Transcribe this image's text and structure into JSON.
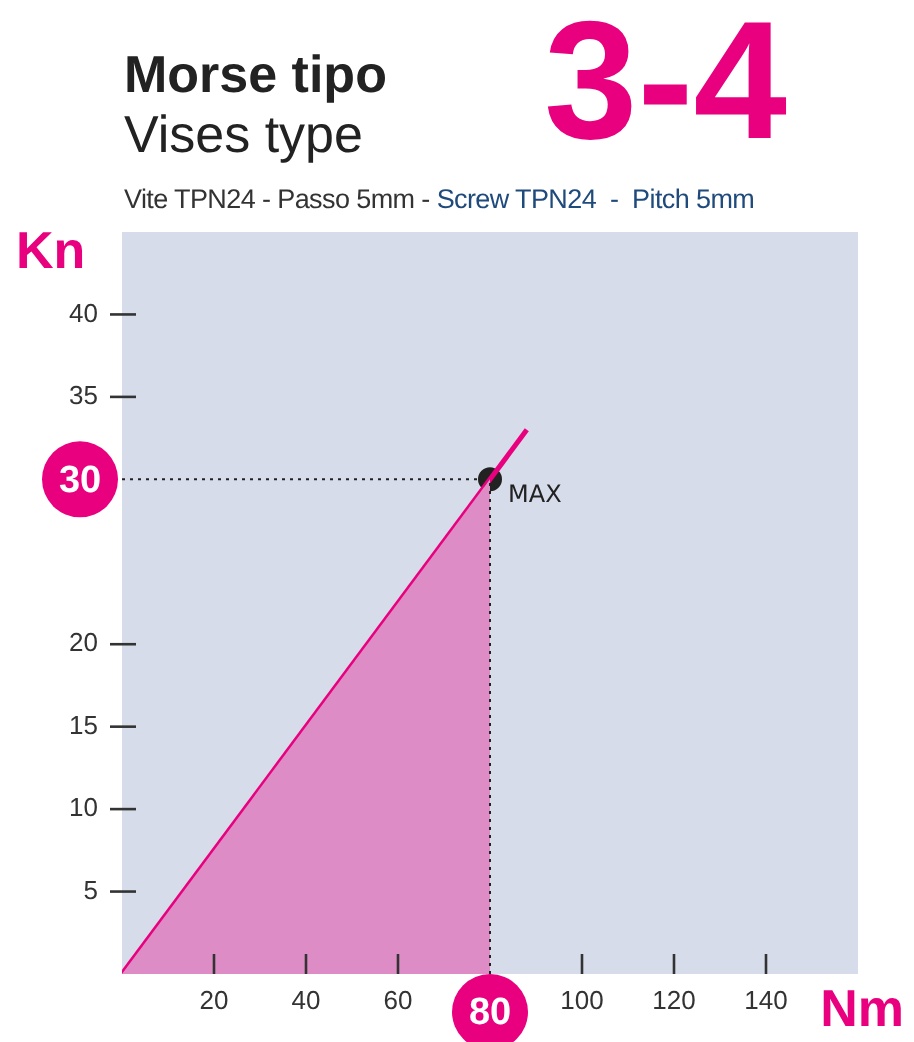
{
  "chart_data": {
    "type": "line",
    "title": "Morse tipo",
    "subtitle": "Vises type",
    "xlabel": "Nm",
    "ylabel": "Kn",
    "annotations": [
      "3-4",
      "Vite TPN24 - Passo 5mm -",
      "Screw TPN24  -  Pitch 5mm",
      {
        "text": "MAX",
        "x": 80,
        "y": 30
      }
    ],
    "series": [
      {
        "type": "area",
        "color": "#de8cc6",
        "x": [
          0,
          80
        ],
        "values": [
          0,
          30
        ]
      },
      {
        "type": "line",
        "color": "#e8007f",
        "x": [
          0,
          88
        ],
        "values": [
          0,
          33
        ]
      },
      {
        "type": "scatter",
        "color": "#222222",
        "x": [
          80
        ],
        "values": [
          30
        ]
      }
    ],
    "xlim": [
      0,
      160
    ],
    "xticks": [
      20,
      40,
      60,
      100,
      120,
      140
    ],
    "ylim": [
      0,
      45
    ],
    "yticks": [
      5,
      10,
      15,
      20,
      35,
      40
    ],
    "ref_lines": [
      {
        "axis": "y",
        "value": 30,
        "label": "30",
        "color": "#222222",
        "line_style": "dotted"
      },
      {
        "axis": "x",
        "value": 80,
        "label": "80",
        "color": "#222222",
        "line_style": "dotted"
      }
    ],
    "grid": false,
    "legend": false
  }
}
